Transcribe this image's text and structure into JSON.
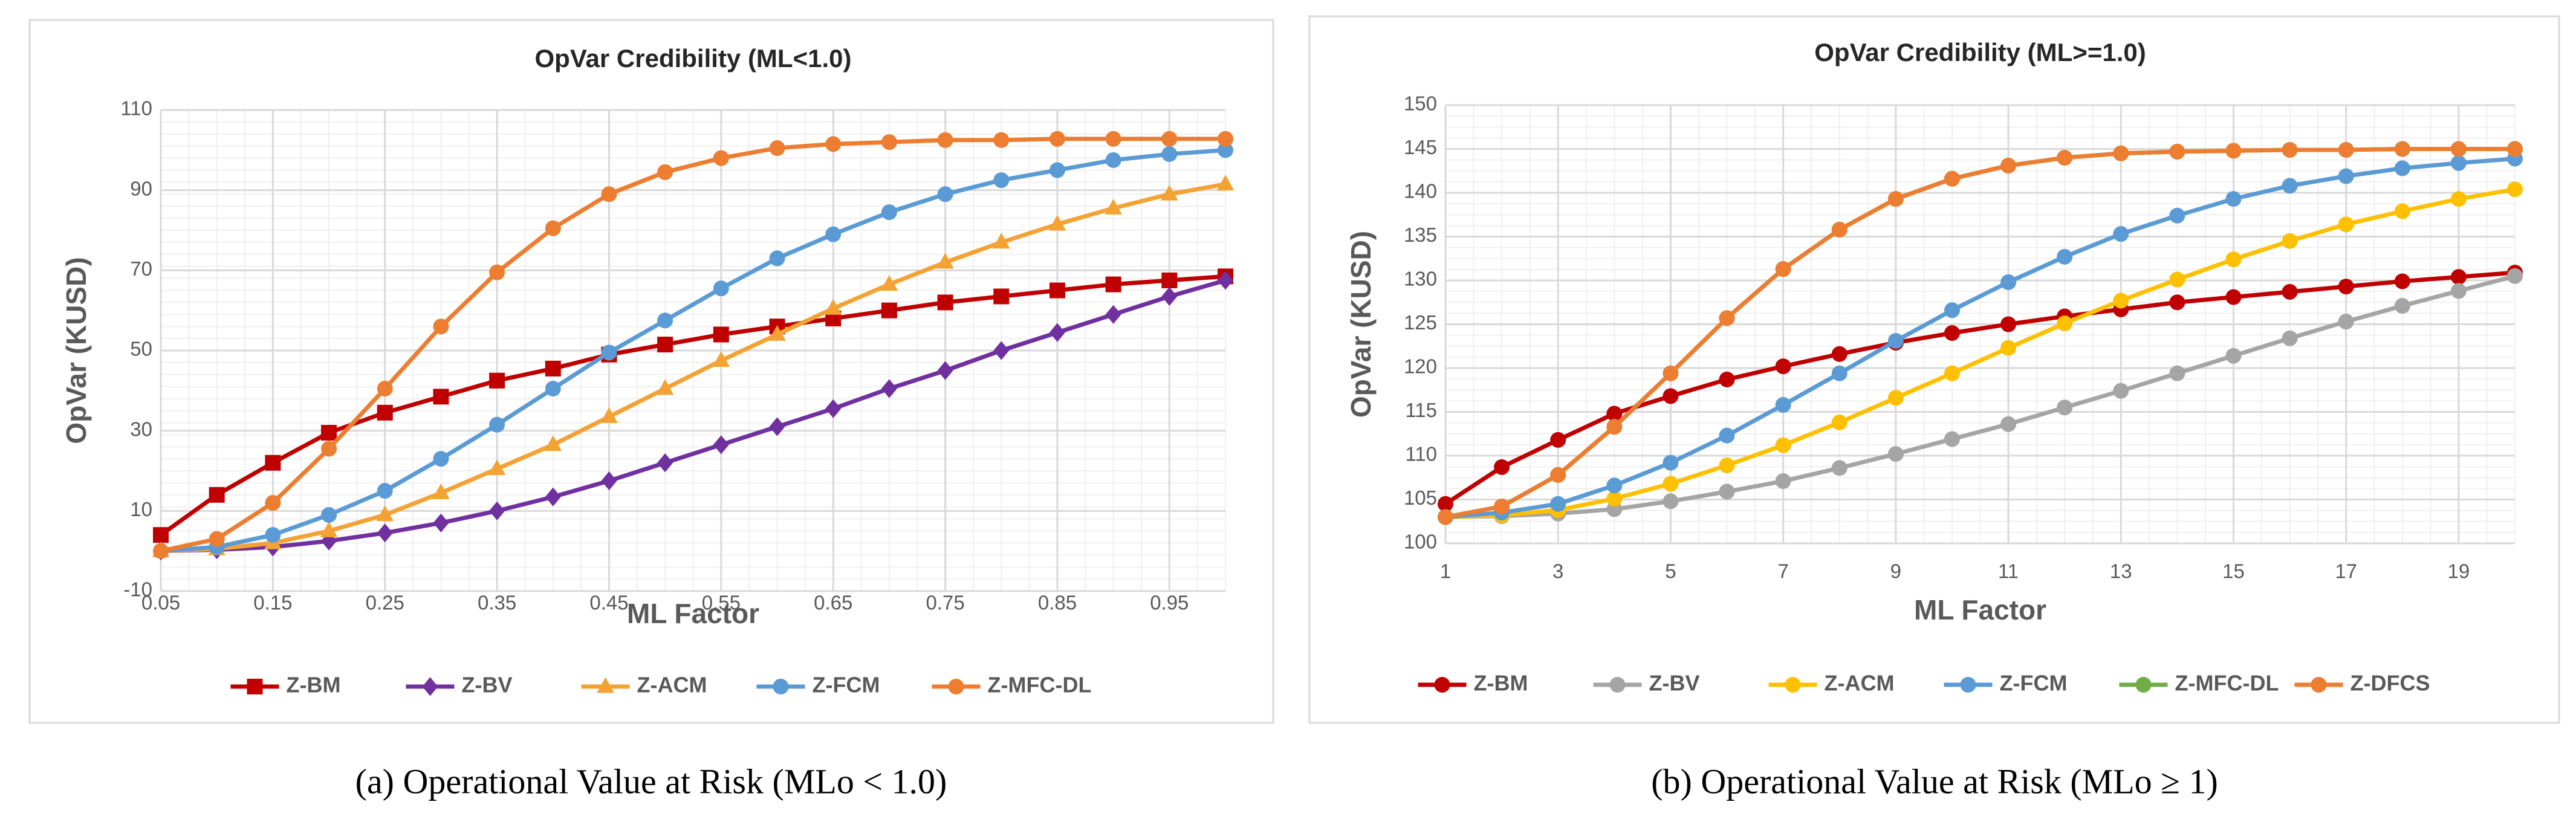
{
  "chart_data": [
    {
      "type": "line",
      "title": "OpVar Credibility (ML<1.0)",
      "xlabel": "ML Factor",
      "ylabel": "OpVar (KUSD)",
      "caption": "(a) Operational Value at Risk (MLo < 1.0)",
      "x": [
        0.05,
        0.1,
        0.15,
        0.2,
        0.25,
        0.3,
        0.35,
        0.4,
        0.45,
        0.5,
        0.55,
        0.6,
        0.65,
        0.7,
        0.75,
        0.8,
        0.85,
        0.9,
        0.95,
        1.0
      ],
      "xlim": [
        0.05,
        1.0
      ],
      "xticks": [
        0.05,
        0.15,
        0.25,
        0.35,
        0.45,
        0.55,
        0.65,
        0.75,
        0.85,
        0.95
      ],
      "ylim": [
        -10,
        110
      ],
      "yticks": [
        -10,
        10,
        30,
        50,
        70,
        90,
        110
      ],
      "grid": true,
      "legend": "bottom",
      "series": [
        {
          "name": "Z-BM",
          "color": "#c00000",
          "marker": "square",
          "values": [
            4,
            14,
            22,
            29.5,
            34.5,
            38.5,
            42.5,
            45.5,
            49,
            51.5,
            54,
            56,
            58,
            60,
            62,
            63.5,
            65,
            66.5,
            67.5,
            68.5
          ]
        },
        {
          "name": "Z-BV",
          "color": "#7030a0",
          "marker": "diamond",
          "values": [
            0,
            0.3,
            1,
            2.5,
            4.5,
            7,
            10,
            13.5,
            17.5,
            22,
            26.5,
            31,
            35.5,
            40.5,
            45,
            50,
            54.5,
            59,
            63.5,
            67.5
          ]
        },
        {
          "name": "Z-ACM",
          "color": "#f4a234",
          "marker": "triangle",
          "values": [
            0,
            0.5,
            2,
            5,
            9,
            14.5,
            20.5,
            26.5,
            33.5,
            40.5,
            47.5,
            54,
            60.5,
            66.5,
            72,
            77,
            81.5,
            85.5,
            89,
            91.5
          ]
        },
        {
          "name": "Z-FCM",
          "color": "#5b9bd5",
          "marker": "circle",
          "values": [
            0,
            1,
            4,
            9,
            15,
            23,
            31.5,
            40.5,
            49.5,
            57.5,
            65.5,
            73,
            79,
            84.5,
            89,
            92.5,
            95,
            97.5,
            99,
            100
          ]
        },
        {
          "name": "Z-MFC-DL",
          "color": "#ed7d31",
          "marker": "circle",
          "values": [
            0,
            3,
            12,
            25.5,
            40.5,
            56,
            69.5,
            80.5,
            89,
            94.5,
            98,
            100.5,
            101.5,
            102,
            102.5,
            102.5,
            102.8,
            102.8,
            102.8,
            102.8
          ]
        }
      ]
    },
    {
      "type": "line",
      "title": "OpVar Credibility (ML>=1.0)",
      "xlabel": "ML Factor",
      "ylabel": "OpVar (KUSD)",
      "caption": "(b) Operational Value at Risk (MLo ≥ 1)",
      "x": [
        1,
        2,
        3,
        4,
        5,
        6,
        7,
        8,
        9,
        10,
        11,
        12,
        13,
        14,
        15,
        16,
        17,
        18,
        19,
        20
      ],
      "xlim": [
        1,
        20
      ],
      "xticks": [
        1,
        3,
        5,
        7,
        9,
        11,
        13,
        15,
        17,
        19
      ],
      "ylim": [
        100,
        150
      ],
      "yticks": [
        100,
        105,
        110,
        115,
        120,
        125,
        130,
        135,
        140,
        145,
        150
      ],
      "grid": true,
      "legend": "bottom",
      "series": [
        {
          "name": "Z-BM",
          "color": "#c00000",
          "marker": "circle",
          "values": [
            104.5,
            108.7,
            111.8,
            114.8,
            116.8,
            118.7,
            120.2,
            121.6,
            122.9,
            124,
            125,
            125.9,
            126.7,
            127.5,
            128.1,
            128.7,
            129.3,
            129.9,
            130.4,
            130.9
          ]
        },
        {
          "name": "Z-BV",
          "color": "#a5a5a5",
          "marker": "circle",
          "values": [
            103,
            103.1,
            103.4,
            103.9,
            104.8,
            105.9,
            107.1,
            108.6,
            110.2,
            111.9,
            113.6,
            115.5,
            117.4,
            119.4,
            121.4,
            123.4,
            125.3,
            127.1,
            128.8,
            130.5
          ]
        },
        {
          "name": "Z-ACM",
          "color": "#ffc000",
          "marker": "circle",
          "values": [
            103,
            103.2,
            103.8,
            105.1,
            106.8,
            108.9,
            111.2,
            113.8,
            116.6,
            119.4,
            122.3,
            125.1,
            127.7,
            130.1,
            132.4,
            134.5,
            136.4,
            137.9,
            139.3,
            140.4
          ]
        },
        {
          "name": "Z-FCM",
          "color": "#5b9bd5",
          "marker": "circle",
          "values": [
            103,
            103.5,
            104.5,
            106.6,
            109.2,
            112.3,
            115.8,
            119.4,
            123.1,
            126.6,
            129.8,
            132.7,
            135.3,
            137.4,
            139.3,
            140.8,
            141.9,
            142.8,
            143.4,
            143.9
          ]
        },
        {
          "name": "Z-MFC-DL",
          "color": "#70ad47",
          "marker": "circle",
          "values": [
            103,
            104.2,
            107.8,
            113.3,
            119.4,
            125.7,
            131.3,
            135.8,
            139.3,
            141.6,
            143.1,
            144,
            144.5,
            144.7,
            144.8,
            144.9,
            144.9,
            145,
            145,
            145
          ]
        },
        {
          "name": "Z-DFCS",
          "color": "#ed7d31",
          "marker": "circle",
          "values": [
            103,
            104.2,
            107.8,
            113.3,
            119.4,
            125.7,
            131.3,
            135.8,
            139.3,
            141.6,
            143.1,
            144,
            144.5,
            144.7,
            144.8,
            144.9,
            144.9,
            145,
            145,
            145
          ]
        }
      ]
    }
  ]
}
